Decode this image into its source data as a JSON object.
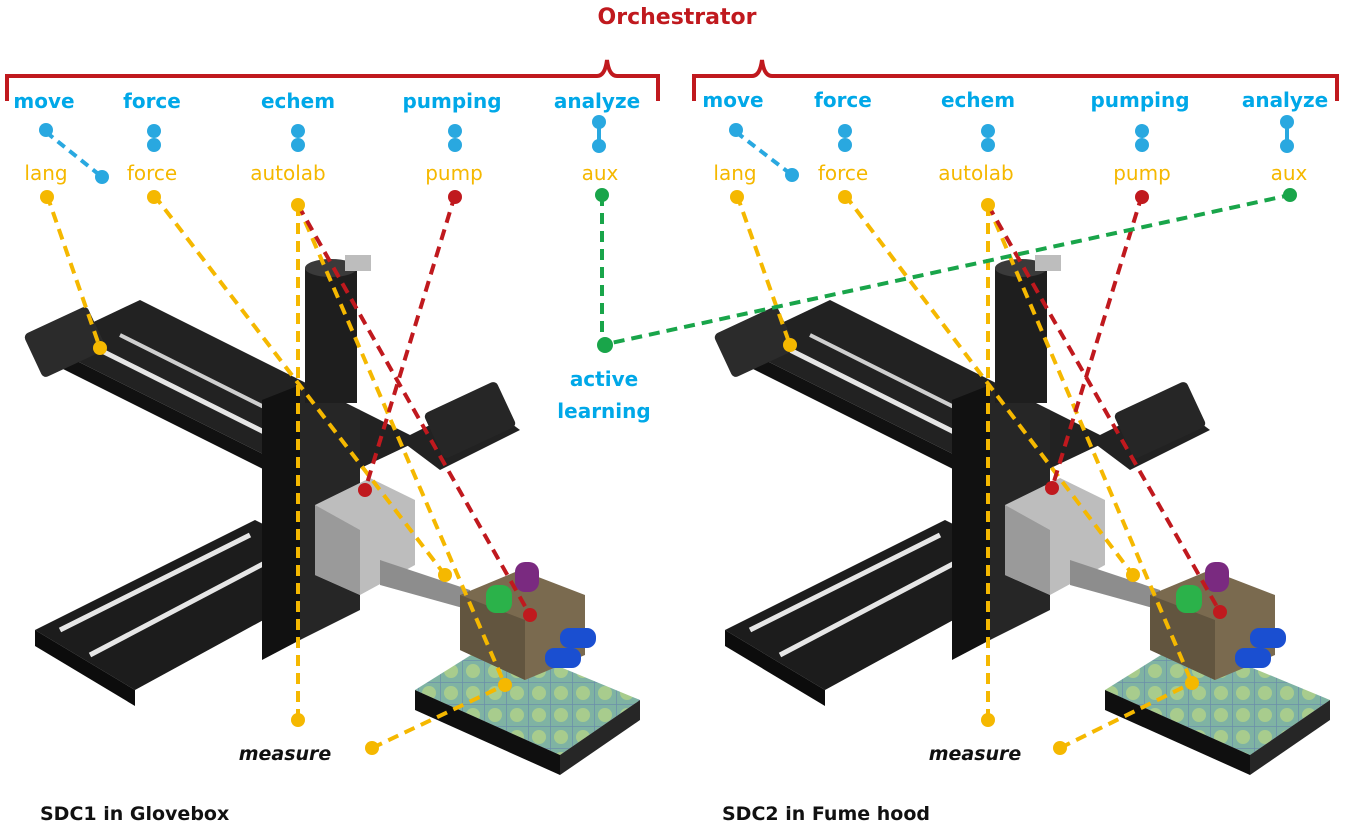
{
  "title": "Orchestrator",
  "colors": {
    "orchestrator": "#c0191e",
    "capability": "#00a8e8",
    "driver": "#f5b800",
    "pump_link": "#c0191e",
    "active_learning_link": "#19a54a",
    "hardware": "#1c1c1c",
    "cell_block": "#7a6a4f"
  },
  "systems": [
    {
      "capabilities": [
        "move",
        "force",
        "echem",
        "pumping",
        "analyze"
      ],
      "drivers": [
        "lang",
        "force",
        "autolab",
        "pump",
        "aux"
      ],
      "measure_label": "measure",
      "caption": "SDC1 in Glovebox"
    },
    {
      "capabilities": [
        "move",
        "force",
        "echem",
        "pumping",
        "analyze"
      ],
      "drivers": [
        "lang",
        "force",
        "autolab",
        "pump",
        "aux"
      ],
      "measure_label": "measure",
      "caption": "SDC2 in Fume hood"
    }
  ],
  "active_learning": {
    "line1": "active",
    "line2": "learning"
  }
}
